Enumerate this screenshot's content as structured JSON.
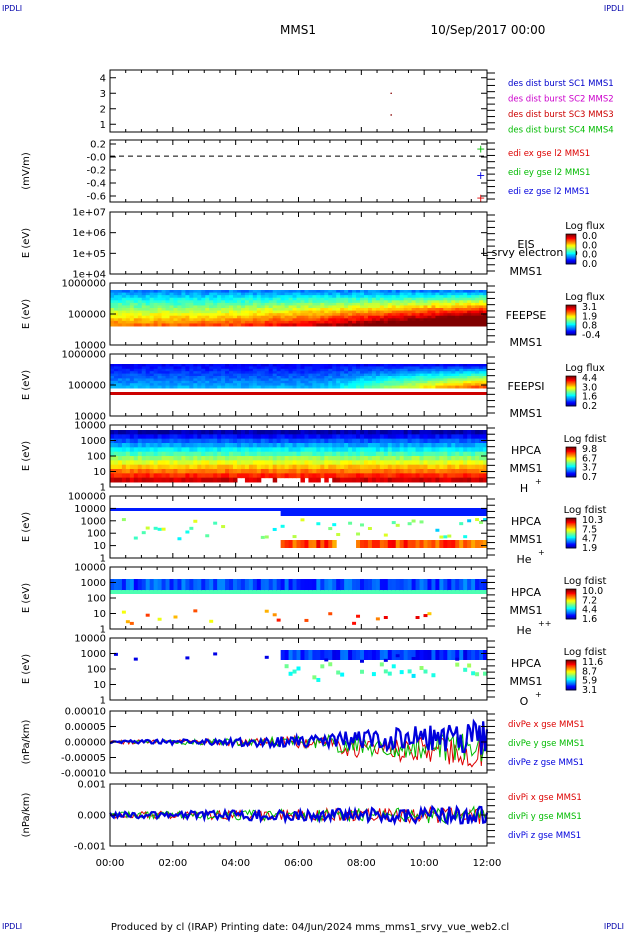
{
  "header": {
    "spacecraft": "MMS1",
    "datetime": "10/Sep/2017 00:00",
    "corner_label": "IPDLI"
  },
  "footer": {
    "text": "Produced by cl (IRAP)   Printing date: 04/Jun/2024   mms_mms1_srvy_vue_web2.cl"
  },
  "x_axis": {
    "ticks": [
      "00:00",
      "02:00",
      "04:00",
      "06:00",
      "08:00",
      "10:00",
      "12:00"
    ],
    "range_hours": [
      0,
      12
    ]
  },
  "colors": {
    "sc1": "#0000cc",
    "sc2": "#cc00cc",
    "sc3": "#cc0000",
    "sc4": "#00bb00",
    "red": "#dd0000",
    "green": "#00bb00",
    "blue": "#0000dd"
  },
  "chart_data": [
    {
      "id": "p1",
      "type": "scatter",
      "ylabel": "",
      "yticks": [
        "4",
        "3",
        "2",
        "1"
      ],
      "legend": [
        {
          "text": "des dist burst SC1 MMS1",
          "color": "#0000cc"
        },
        {
          "text": "des dist burst SC2 MMS2",
          "color": "#cc00cc"
        },
        {
          "text": "des dist burst SC3 MMS3",
          "color": "#cc0000"
        },
        {
          "text": "des dist burst SC4 MMS4",
          "color": "#00bb00"
        }
      ],
      "points": [
        {
          "x": 8.95,
          "y": 3
        },
        {
          "x": 8.95,
          "y": 1.6
        }
      ]
    },
    {
      "id": "p2",
      "type": "line",
      "ylabel": "(mV/m)",
      "yticks": [
        "0.2",
        "-0.0",
        "-0.2",
        "-0.4",
        "-0.6"
      ],
      "legend": [
        {
          "text": "edi ex gse l2 MMS1",
          "color": "#dd0000"
        },
        {
          "text": "edi ey gse l2 MMS1",
          "color": "#00bb00"
        },
        {
          "text": "edi ez gse l2 MMS1",
          "color": "#0000dd"
        }
      ],
      "points": [
        {
          "x": 11.8,
          "y": 0.13,
          "series": "green"
        },
        {
          "x": 11.8,
          "y": -0.33,
          "series": "blue"
        },
        {
          "x": 11.8,
          "y": -0.72,
          "series": "red"
        }
      ]
    },
    {
      "id": "p3",
      "type": "heatmap",
      "ylabel": "E (eV)",
      "yticks": [
        "1e+07",
        "1e+06",
        "1e+05",
        "1e+04"
      ],
      "right_labels": [
        "EIS",
        "MMS1"
      ],
      "overlay_text": "L srvy electron to",
      "colorbar_title": "Log flux",
      "colorbar_ticks": [
        "0.0",
        "0.0",
        "0.0",
        "0.0"
      ]
    },
    {
      "id": "p4",
      "type": "heatmap",
      "ylabel": "E (eV)",
      "yticks": [
        "1000000",
        "100000",
        "10000"
      ],
      "right_labels": [
        "FEEPSE",
        "MMS1"
      ],
      "colorbar_title": "Log flux",
      "colorbar_ticks": [
        "3.1",
        "1.9",
        "0.8",
        "-0.4"
      ]
    },
    {
      "id": "p5",
      "type": "heatmap",
      "ylabel": "E (eV)",
      "yticks": [
        "1000000",
        "100000",
        "10000"
      ],
      "right_labels": [
        "FEEPSI",
        "MMS1"
      ],
      "colorbar_title": "Log flux",
      "colorbar_ticks": [
        "4.4",
        "3.0",
        "1.6",
        "0.2"
      ]
    },
    {
      "id": "p6",
      "type": "heatmap",
      "ylabel": "E (eV)",
      "yticks": [
        "10000",
        "1000",
        "100",
        "10",
        "1"
      ],
      "right_labels": [
        "HPCA",
        "MMS1"
      ],
      "species": "H",
      "species_sup": "+",
      "colorbar_title": "Log fdist",
      "colorbar_ticks": [
        "9.8",
        "6.7",
        "3.7",
        "0.7"
      ]
    },
    {
      "id": "p7",
      "type": "heatmap",
      "ylabel": "E (eV)",
      "yticks": [
        "100000",
        "10000",
        "1000",
        "100",
        "10",
        "1"
      ],
      "right_labels": [
        "HPCA",
        "MMS1"
      ],
      "species": "He",
      "species_sup": "+",
      "colorbar_title": "Log fdist",
      "colorbar_ticks": [
        "10.3",
        "7.5",
        "4.7",
        "1.9"
      ]
    },
    {
      "id": "p8",
      "type": "heatmap",
      "ylabel": "E (eV)",
      "yticks": [
        "10000",
        "1000",
        "100",
        "10",
        "1"
      ],
      "right_labels": [
        "HPCA",
        "MMS1"
      ],
      "species": "He",
      "species_sup": "++",
      "colorbar_title": "Log fdist",
      "colorbar_ticks": [
        "10.0",
        "7.2",
        "4.4",
        "1.6"
      ]
    },
    {
      "id": "p9",
      "type": "heatmap",
      "ylabel": "E (eV)",
      "yticks": [
        "10000",
        "1000",
        "100",
        "10",
        "1"
      ],
      "right_labels": [
        "HPCA",
        "MMS1"
      ],
      "species": "O",
      "species_sup": "+",
      "colorbar_title": "Log fdist",
      "colorbar_ticks": [
        "11.6",
        "8.7",
        "5.9",
        "3.1"
      ]
    },
    {
      "id": "p10",
      "type": "line",
      "ylabel": "(nPa/km)",
      "yticks": [
        "0.00010",
        "0.00005",
        "0.00000",
        "-0.00005",
        "-0.00010"
      ],
      "legend": [
        {
          "text": "divPe x gse MMS1",
          "color": "#dd0000"
        },
        {
          "text": "divPe y gse MMS1",
          "color": "#00bb00"
        },
        {
          "text": "divPe z gse MMS1",
          "color": "#0000dd"
        }
      ]
    },
    {
      "id": "p11",
      "type": "line",
      "ylabel": "(nPa/km)",
      "yticks": [
        "0.001",
        "0.000",
        "-0.001"
      ],
      "legend": [
        {
          "text": "divPi x gse MMS1",
          "color": "#dd0000"
        },
        {
          "text": "divPi y gse MMS1",
          "color": "#00bb00"
        },
        {
          "text": "divPi z gse MMS1",
          "color": "#0000dd"
        }
      ]
    }
  ]
}
